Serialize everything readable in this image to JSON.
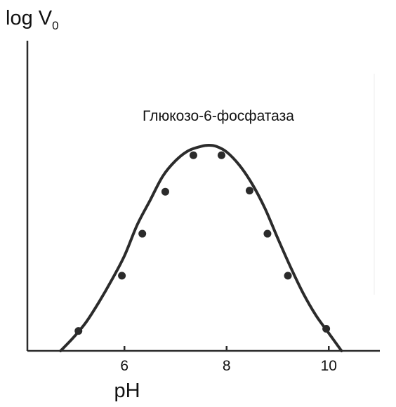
{
  "chart_data": {
    "type": "line",
    "title": "",
    "ylabel_main": "log V",
    "ylabel_sub": "0",
    "xlabel": "pH",
    "annotation": "Глюкозо-6-фосфатаза",
    "xlim": [
      4.1,
      11.0
    ],
    "ylim": [
      0,
      1
    ],
    "xticks": [
      6,
      8,
      10
    ],
    "tick_labels": [
      "6",
      "8",
      "10"
    ],
    "grid": false,
    "curve": {
      "x": [
        4.75,
        5.0,
        5.25,
        5.5,
        5.75,
        6.0,
        6.25,
        6.5,
        6.75,
        7.0,
        7.25,
        7.5,
        7.65,
        7.8,
        8.0,
        8.25,
        8.5,
        8.75,
        9.0,
        9.25,
        9.5,
        9.75,
        10.0,
        10.25
      ],
      "y": [
        0.0,
        0.06,
        0.13,
        0.22,
        0.32,
        0.43,
        0.57,
        0.68,
        0.79,
        0.86,
        0.905,
        0.925,
        0.93,
        0.925,
        0.9,
        0.84,
        0.755,
        0.645,
        0.51,
        0.38,
        0.26,
        0.16,
        0.08,
        0.0
      ]
    },
    "points": {
      "x": [
        5.1,
        5.95,
        6.35,
        6.8,
        7.35,
        7.9,
        8.45,
        8.8,
        9.2,
        9.95
      ],
      "y": [
        0.09,
        0.34,
        0.53,
        0.72,
        0.885,
        0.885,
        0.725,
        0.53,
        0.34,
        0.1
      ]
    }
  }
}
